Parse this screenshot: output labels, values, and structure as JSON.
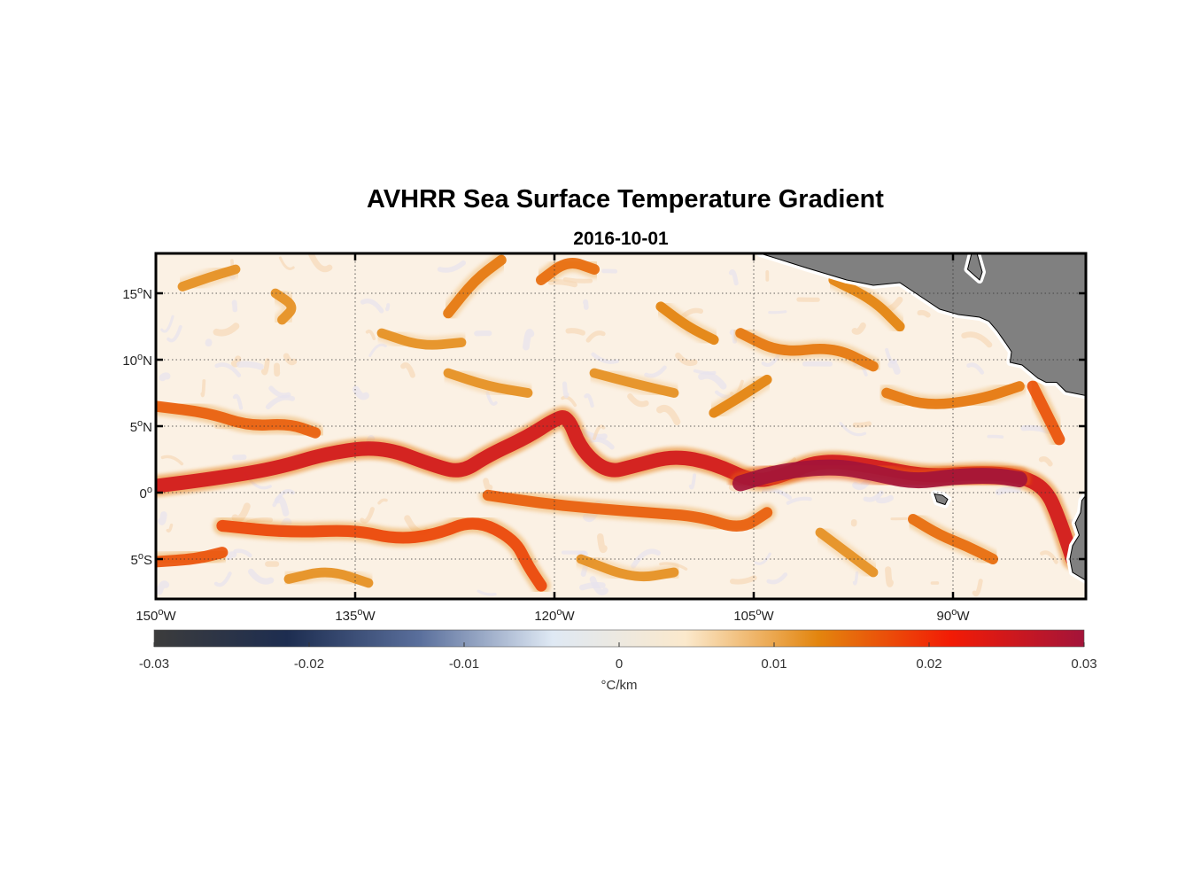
{
  "chart_data": {
    "type": "heatmap",
    "title": "AVHRR Sea Surface Temperature Gradient",
    "subtitle": "2016-10-01",
    "xlim": [
      -150,
      -80
    ],
    "ylim": [
      -8,
      18
    ],
    "grid": true,
    "x_ticks": [
      {
        "value": -150,
        "label": "150°W"
      },
      {
        "value": -135,
        "label": "135°W"
      },
      {
        "value": -120,
        "label": "120°W"
      },
      {
        "value": -105,
        "label": "105°W"
      },
      {
        "value": -90,
        "label": "90°W"
      }
    ],
    "y_ticks": [
      {
        "value": 15,
        "label": "15°N"
      },
      {
        "value": 10,
        "label": "10°N"
      },
      {
        "value": 5,
        "label": "5°N"
      },
      {
        "value": 0,
        "label": "0°"
      },
      {
        "value": -5,
        "label": "5°S"
      }
    ],
    "colorbar": {
      "label": "°C/km",
      "range": [
        -0.03,
        0.03
      ],
      "ticks": [
        {
          "value": -0.03,
          "label": "-0.03"
        },
        {
          "value": -0.02,
          "label": "-0.02"
        },
        {
          "value": -0.01,
          "label": "-0.01"
        },
        {
          "value": 0,
          "label": "0"
        },
        {
          "value": 0.01,
          "label": "0.01"
        },
        {
          "value": 0.02,
          "label": "0.02"
        },
        {
          "value": 0.03,
          "label": "0.03"
        }
      ],
      "colors": [
        "#3c3c3c",
        "#1d2d50",
        "#5a6f9c",
        "#dfe9f4",
        "#fbe9cc",
        "#e3850e",
        "#f21b05",
        "#a3143a"
      ]
    },
    "fronts": [
      {
        "name": "equatorial-front",
        "intensity": 0.025,
        "points": [
          [
            -150,
            0.5
          ],
          [
            -146,
            1
          ],
          [
            -141,
            1.8
          ],
          [
            -137,
            3
          ],
          [
            -133,
            3.5
          ],
          [
            -129,
            2
          ],
          [
            -127,
            1.5
          ],
          [
            -125,
            2.8
          ],
          [
            -122,
            4.2
          ],
          [
            -120,
            5.5
          ],
          [
            -119,
            5.8
          ],
          [
            -118,
            3.2
          ],
          [
            -116,
            1.5
          ],
          [
            -114,
            2
          ],
          [
            -111,
            2.8
          ],
          [
            -108,
            2.2
          ],
          [
            -105,
            0.8
          ],
          [
            -103,
            1.2
          ],
          [
            -100,
            2.5
          ],
          [
            -96,
            2
          ],
          [
            -92,
            1.2
          ],
          [
            -88,
            1.5
          ],
          [
            -85,
            1.3
          ],
          [
            -83,
            0.3
          ],
          [
            -82,
            -2
          ],
          [
            -81,
            -5
          ]
        ]
      },
      {
        "name": "eastern-core",
        "intensity": 0.03,
        "points": [
          [
            -106,
            0.7
          ],
          [
            -103,
            1.6
          ],
          [
            -99,
            2
          ],
          [
            -96,
            1.5
          ],
          [
            -93,
            0.8
          ],
          [
            -90,
            1.2
          ],
          [
            -87,
            1.3
          ],
          [
            -85,
            1
          ]
        ]
      },
      {
        "name": "south-front",
        "intensity": 0.018,
        "points": [
          [
            -145,
            -2.5
          ],
          [
            -140,
            -3
          ],
          [
            -135,
            -2.8
          ],
          [
            -132,
            -3.5
          ],
          [
            -129,
            -3.2
          ],
          [
            -126,
            -2
          ],
          [
            -123,
            -3.5
          ],
          [
            -122,
            -5.5
          ],
          [
            -121,
            -7
          ]
        ]
      },
      {
        "name": "south-front-2",
        "intensity": 0.016,
        "points": [
          [
            -125,
            -0.2
          ],
          [
            -121,
            -0.8
          ],
          [
            -117,
            -1.2
          ],
          [
            -113,
            -1.5
          ],
          [
            -109,
            -1.8
          ],
          [
            -106,
            -2.8
          ],
          [
            -104,
            -1.5
          ]
        ]
      },
      {
        "name": "southwest-front",
        "intensity": 0.017,
        "points": [
          [
            -150,
            -5.2
          ],
          [
            -147,
            -5
          ],
          [
            -145,
            -4.5
          ]
        ]
      },
      {
        "name": "north-front-1",
        "intensity": 0.016,
        "points": [
          [
            -150,
            6.5
          ],
          [
            -146,
            6
          ],
          [
            -143,
            5
          ],
          [
            -140,
            5.2
          ],
          [
            -138,
            4.5
          ]
        ]
      },
      {
        "name": "north-front-2",
        "intensity": 0.014,
        "points": [
          [
            -128,
            13.5
          ],
          [
            -126,
            16
          ],
          [
            -124,
            17.5
          ]
        ]
      },
      {
        "name": "north-front-3",
        "intensity": 0.015,
        "points": [
          [
            -121,
            16
          ],
          [
            -119,
            17.5
          ],
          [
            -117,
            16.8
          ]
        ]
      },
      {
        "name": "north-front-4",
        "intensity": 0.014,
        "points": [
          [
            -106,
            12
          ],
          [
            -103,
            10.5
          ],
          [
            -99,
            11
          ],
          [
            -96,
            9.5
          ]
        ]
      },
      {
        "name": "north-front-5",
        "intensity": 0.014,
        "points": [
          [
            -95,
            7.5
          ],
          [
            -92,
            6.5
          ],
          [
            -88,
            7
          ],
          [
            -85,
            8
          ]
        ]
      },
      {
        "name": "north-front-6",
        "intensity": 0.012,
        "points": [
          [
            -148,
            15.5
          ],
          [
            -146,
            16.2
          ],
          [
            -144,
            16.8
          ]
        ]
      },
      {
        "name": "north-front-7",
        "intensity": 0.012,
        "points": [
          [
            -141,
            15
          ],
          [
            -139.5,
            14
          ],
          [
            -140.5,
            13
          ]
        ]
      },
      {
        "name": "north-front-8",
        "intensity": 0.013,
        "points": [
          [
            -112,
            14
          ],
          [
            -110,
            12.5
          ],
          [
            -108,
            11.5
          ]
        ]
      },
      {
        "name": "north-front-9",
        "intensity": 0.013,
        "points": [
          [
            -99,
            16
          ],
          [
            -96,
            14.5
          ],
          [
            -94,
            12.5
          ]
        ]
      },
      {
        "name": "north-front-10",
        "intensity": 0.012,
        "points": [
          [
            -133,
            12
          ],
          [
            -130,
            11
          ],
          [
            -127,
            11.3
          ]
        ]
      },
      {
        "name": "mid-front-1",
        "intensity": 0.012,
        "points": [
          [
            -117,
            9
          ],
          [
            -114,
            8.2
          ],
          [
            -111,
            7.5
          ]
        ]
      },
      {
        "name": "mid-front-2",
        "intensity": 0.013,
        "points": [
          [
            -108,
            6
          ],
          [
            -106,
            7.2
          ],
          [
            -104,
            8.5
          ]
        ]
      },
      {
        "name": "mid-front-3",
        "intensity": 0.012,
        "points": [
          [
            -128,
            9
          ],
          [
            -125,
            8
          ],
          [
            -122,
            7.5
          ]
        ]
      },
      {
        "name": "east-front-1",
        "intensity": 0.017,
        "points": [
          [
            -84,
            8
          ],
          [
            -83,
            6
          ],
          [
            -82,
            4
          ]
        ]
      },
      {
        "name": "east-front-2",
        "intensity": 0.015,
        "points": [
          [
            -93,
            -2
          ],
          [
            -91,
            -3.2
          ],
          [
            -89,
            -4
          ],
          [
            -87,
            -5
          ]
        ]
      },
      {
        "name": "east-front-3",
        "intensity": 0.012,
        "points": [
          [
            -100,
            -3
          ],
          [
            -98,
            -4.5
          ],
          [
            -96,
            -6
          ]
        ]
      },
      {
        "name": "south-front-4",
        "intensity": 0.012,
        "points": [
          [
            -140,
            -6.5
          ],
          [
            -137,
            -5.8
          ],
          [
            -134,
            -6.8
          ]
        ]
      },
      {
        "name": "south-front-5",
        "intensity": 0.012,
        "points": [
          [
            -118,
            -5
          ],
          [
            -114,
            -6.5
          ],
          [
            -111,
            -6
          ]
        ]
      }
    ],
    "land": [
      {
        "name": "central-america",
        "points": [
          [
            -104.5,
            18
          ],
          [
            -101,
            16.9
          ],
          [
            -98,
            16
          ],
          [
            -96,
            15.6
          ],
          [
            -94,
            15.8
          ],
          [
            -92.5,
            14.8
          ],
          [
            -91,
            13.8
          ],
          [
            -89.6,
            13.4
          ],
          [
            -88,
            13.2
          ],
          [
            -87.3,
            12.9
          ],
          [
            -86.7,
            12.2
          ],
          [
            -86,
            11.2
          ],
          [
            -85.6,
            10.6
          ],
          [
            -85.7,
            9.8
          ],
          [
            -84.8,
            9.6
          ],
          [
            -84.2,
            9.1
          ],
          [
            -83.6,
            8.6
          ],
          [
            -83,
            8.3
          ],
          [
            -82.2,
            8.3
          ],
          [
            -81.5,
            7.6
          ],
          [
            -80,
            7.3
          ],
          [
            -80,
            18
          ]
        ]
      },
      {
        "name": "gulf-of-honduras",
        "points": [
          [
            -88,
            16
          ],
          [
            -88.9,
            16.8
          ],
          [
            -88.6,
            18
          ],
          [
            -88.2,
            18
          ],
          [
            -87.8,
            16.6
          ]
        ]
      },
      {
        "name": "ecuador-coast",
        "points": [
          [
            -80,
            -0.2
          ],
          [
            -80.3,
            -0.6
          ],
          [
            -80.4,
            -1.5
          ],
          [
            -80.8,
            -2.3
          ],
          [
            -80.5,
            -3.2
          ],
          [
            -81,
            -4
          ],
          [
            -81.2,
            -5
          ],
          [
            -81,
            -6
          ],
          [
            -80,
            -6.6
          ]
        ]
      },
      {
        "name": "galapagos-islands",
        "points": [
          [
            -91.4,
            -0.1
          ],
          [
            -90.8,
            -0.2
          ],
          [
            -90.4,
            -0.5
          ],
          [
            -90.6,
            -0.9
          ],
          [
            -91.2,
            -0.7
          ]
        ]
      }
    ]
  }
}
